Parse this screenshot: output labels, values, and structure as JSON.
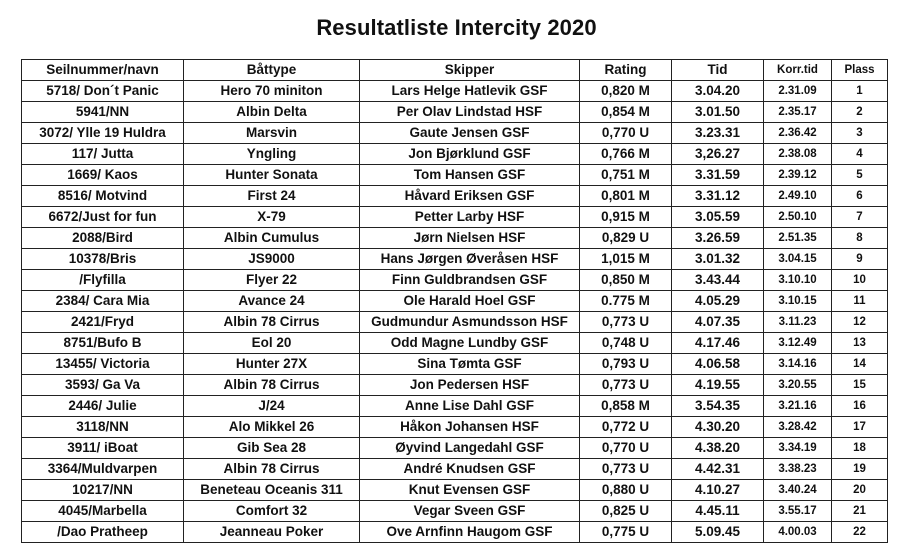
{
  "title": "Resultatliste Intercity 2020",
  "headers": [
    "Seilnummer/navn",
    "Båttype",
    "Skipper",
    "Rating",
    "Tid",
    "Korr.tid",
    "Plass"
  ],
  "rows": [
    [
      "5718/ Don´t Panic",
      "Hero 70 miniton",
      "Lars Helge Hatlevik GSF",
      "0,820 M",
      "3.04.20",
      "2.31.09",
      "1"
    ],
    [
      "5941/NN",
      "Albin Delta",
      "Per Olav Lindstad HSF",
      "0,854 M",
      "3.01.50",
      "2.35.17",
      "2"
    ],
    [
      "3072/ Ylle 19 Huldra",
      "Marsvin",
      "Gaute Jensen GSF",
      "0,770  U",
      "3.23.31",
      "2.36.42",
      "3"
    ],
    [
      "117/ Jutta",
      "Yngling",
      "Jon Bjørklund GSF",
      "0,766 M",
      "3,26.27",
      "2.38.08",
      "4"
    ],
    [
      "1669/ Kaos",
      "Hunter Sonata",
      "Tom Hansen GSF",
      "0,751 M",
      "3.31.59",
      "2.39.12",
      "5"
    ],
    [
      "8516/ Motvind",
      "First 24",
      "Håvard Eriksen GSF",
      "0,801 M",
      "3.31.12",
      "2.49.10",
      "6"
    ],
    [
      "6672/Just for fun",
      "X-79",
      "Petter Larby HSF",
      "0,915 M",
      "3.05.59",
      "2.50.10",
      "7"
    ],
    [
      "2088/Bird",
      "Albin Cumulus",
      "Jørn Nielsen HSF",
      "0,829 U",
      "3.26.59",
      "2.51.35",
      "8"
    ],
    [
      "10378/Bris",
      "JS9000",
      "Hans Jørgen Øveråsen HSF",
      "1,015 M",
      "3.01.32",
      "3.04.15",
      "9"
    ],
    [
      "/Flyfilla",
      "Flyer 22",
      "Finn Guldbrandsen GSF",
      "0,850 M",
      "3.43.44",
      "3.10.10",
      "10"
    ],
    [
      "2384/ Cara Mia",
      "Avance 24",
      "Ole Harald Hoel GSF",
      "0.775 M",
      "4.05.29",
      "3.10.15",
      "11"
    ],
    [
      "2421/Fryd",
      "Albin 78 Cirrus",
      "Gudmundur Asmundsson HSF",
      "0,773 U",
      "4.07.35",
      "3.11.23",
      "12"
    ],
    [
      "8751/Bufo B",
      "Eol 20",
      "Odd Magne Lundby GSF",
      "0,748 U",
      "4.17.46",
      "3.12.49",
      "13"
    ],
    [
      "13455/ Victoria",
      "Hunter 27X",
      "Sina Tømta GSF",
      "0,793 U",
      "4.06.58",
      "3.14.16",
      "14"
    ],
    [
      "3593/ Ga Va",
      "Albin 78 Cirrus",
      "Jon Pedersen HSF",
      "0,773 U",
      "4.19.55",
      "3.20.55",
      "15"
    ],
    [
      "2446/ Julie",
      "J/24",
      "Anne Lise Dahl GSF",
      "0,858 M",
      "3.54.35",
      "3.21.16",
      "16"
    ],
    [
      "3118/NN",
      "Alo Mikkel 26",
      "Håkon Johansen HSF",
      "0,772 U",
      "4.30.20",
      "3.28.42",
      "17"
    ],
    [
      "3911/ iBoat",
      "Gib Sea 28",
      "Øyvind Langedahl GSF",
      "0,770 U",
      "4.38.20",
      "3.34.19",
      "18"
    ],
    [
      "3364/Muldvarpen",
      "Albin 78 Cirrus",
      "André Knudsen GSF",
      "0,773 U",
      "4.42.31",
      "3.38.23",
      "19"
    ],
    [
      "10217/NN",
      "Beneteau Oceanis 311",
      "Knut Evensen GSF",
      "0,880 U",
      "4.10.27",
      "3.40.24",
      "20"
    ],
    [
      "4045/Marbella",
      "Comfort 32",
      "Vegar Sveen GSF",
      "0,825 U",
      "4.45.11",
      "3.55.17",
      "21"
    ],
    [
      "/Dao Pratheep",
      "Jeanneau Poker",
      "Ove Arnfinn Haugom GSF",
      "0,775 U",
      "5.09.45",
      "4.00.03",
      "22"
    ]
  ]
}
